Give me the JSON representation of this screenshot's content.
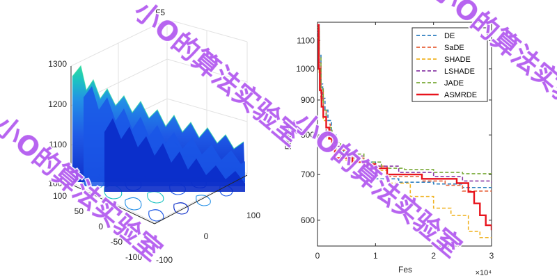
{
  "surface_plot": {
    "title": "F5",
    "z_ticks": [
      "1300",
      "1200",
      "1100",
      "1000"
    ],
    "x_ticks": [
      "-100",
      "0",
      "100"
    ],
    "y_ticks": [
      "100",
      "50",
      "0",
      "-50",
      "-100"
    ],
    "colormap": [
      "#0a2bc8",
      "#1a56e6",
      "#1f8de6",
      "#18c2c0",
      "#2ad9a0"
    ]
  },
  "chart_data": {
    "type": "line",
    "xlabel": "Fes",
    "ylabel": "Fitness",
    "x_exponent_label": "×10⁴",
    "x_range": [
      0,
      30000
    ],
    "y_range": [
      550,
      1170
    ],
    "y_scale": "log",
    "x_ticks": [
      0,
      10000,
      20000,
      30000
    ],
    "x_tick_labels": [
      "0",
      "1",
      "2",
      "3"
    ],
    "y_ticks": [
      600,
      700,
      800,
      900,
      1000,
      1100
    ],
    "y_tick_labels": [
      "600",
      "700",
      "800",
      "900",
      "1000",
      "1100"
    ],
    "legend_position": "top-right",
    "series": [
      {
        "name": "DE",
        "color": "#2e7fc0",
        "dashed": true,
        "points": [
          [
            0,
            1160
          ],
          [
            300,
            1050
          ],
          [
            600,
            950
          ],
          [
            900,
            905
          ],
          [
            1300,
            870
          ],
          [
            1800,
            840
          ],
          [
            2400,
            800
          ],
          [
            3200,
            760
          ],
          [
            4500,
            740
          ],
          [
            7000,
            730
          ],
          [
            10000,
            690
          ],
          [
            14000,
            682
          ],
          [
            20000,
            678
          ],
          [
            25000,
            670
          ],
          [
            30000,
            668
          ]
        ]
      },
      {
        "name": "SaDE",
        "color": "#e8623a",
        "dashed": true,
        "points": [
          [
            0,
            1140
          ],
          [
            300,
            1020
          ],
          [
            600,
            930
          ],
          [
            1000,
            870
          ],
          [
            1500,
            830
          ],
          [
            2200,
            790
          ],
          [
            3000,
            760
          ],
          [
            5000,
            740
          ],
          [
            8000,
            720
          ],
          [
            12000,
            695
          ],
          [
            18000,
            685
          ],
          [
            22000,
            675
          ],
          [
            25000,
            662
          ],
          [
            30000,
            662
          ]
        ]
      },
      {
        "name": "SHADE",
        "color": "#f0b220",
        "dashed": true,
        "points": [
          [
            0,
            1110
          ],
          [
            300,
            980
          ],
          [
            600,
            900
          ],
          [
            1000,
            840
          ],
          [
            1500,
            790
          ],
          [
            2500,
            760
          ],
          [
            4000,
            735
          ],
          [
            8000,
            710
          ],
          [
            12000,
            680
          ],
          [
            16000,
            650
          ],
          [
            20000,
            625
          ],
          [
            23000,
            610
          ],
          [
            26000,
            578
          ],
          [
            28000,
            566
          ],
          [
            30000,
            566
          ]
        ]
      },
      {
        "name": "LSHADE",
        "color": "#8a3aa6",
        "dashed": true,
        "points": [
          [
            0,
            1130
          ],
          [
            300,
            1000
          ],
          [
            600,
            910
          ],
          [
            1000,
            860
          ],
          [
            1500,
            810
          ],
          [
            2500,
            770
          ],
          [
            4000,
            745
          ],
          [
            8000,
            720
          ],
          [
            14000,
            705
          ],
          [
            20000,
            695
          ],
          [
            25000,
            685
          ],
          [
            30000,
            680
          ]
        ]
      },
      {
        "name": "JADE",
        "color": "#7aaa38",
        "dashed": true,
        "points": [
          [
            0,
            1150
          ],
          [
            300,
            1040
          ],
          [
            600,
            940
          ],
          [
            1000,
            870
          ],
          [
            1500,
            820
          ],
          [
            2500,
            780
          ],
          [
            4000,
            750
          ],
          [
            8000,
            730
          ],
          [
            11000,
            715
          ],
          [
            15000,
            712
          ],
          [
            20000,
            705
          ],
          [
            25000,
            702
          ],
          [
            30000,
            702
          ]
        ]
      },
      {
        "name": "ASMRDE",
        "color": "#e8131c",
        "dashed": false,
        "points": [
          [
            0,
            1160
          ],
          [
            200,
            1000
          ],
          [
            400,
            930
          ],
          [
            700,
            880
          ],
          [
            1000,
            850
          ],
          [
            1500,
            820
          ],
          [
            2000,
            790
          ],
          [
            2500,
            760
          ],
          [
            3000,
            740
          ],
          [
            6000,
            730
          ],
          [
            8000,
            725
          ],
          [
            10000,
            715
          ],
          [
            12000,
            700
          ],
          [
            18000,
            690
          ],
          [
            24000,
            680
          ],
          [
            26000,
            660
          ],
          [
            27000,
            635
          ],
          [
            28000,
            610
          ],
          [
            29000,
            590
          ],
          [
            30000,
            580
          ]
        ]
      }
    ]
  },
  "watermark": {
    "text": "小O的算法实验室"
  }
}
